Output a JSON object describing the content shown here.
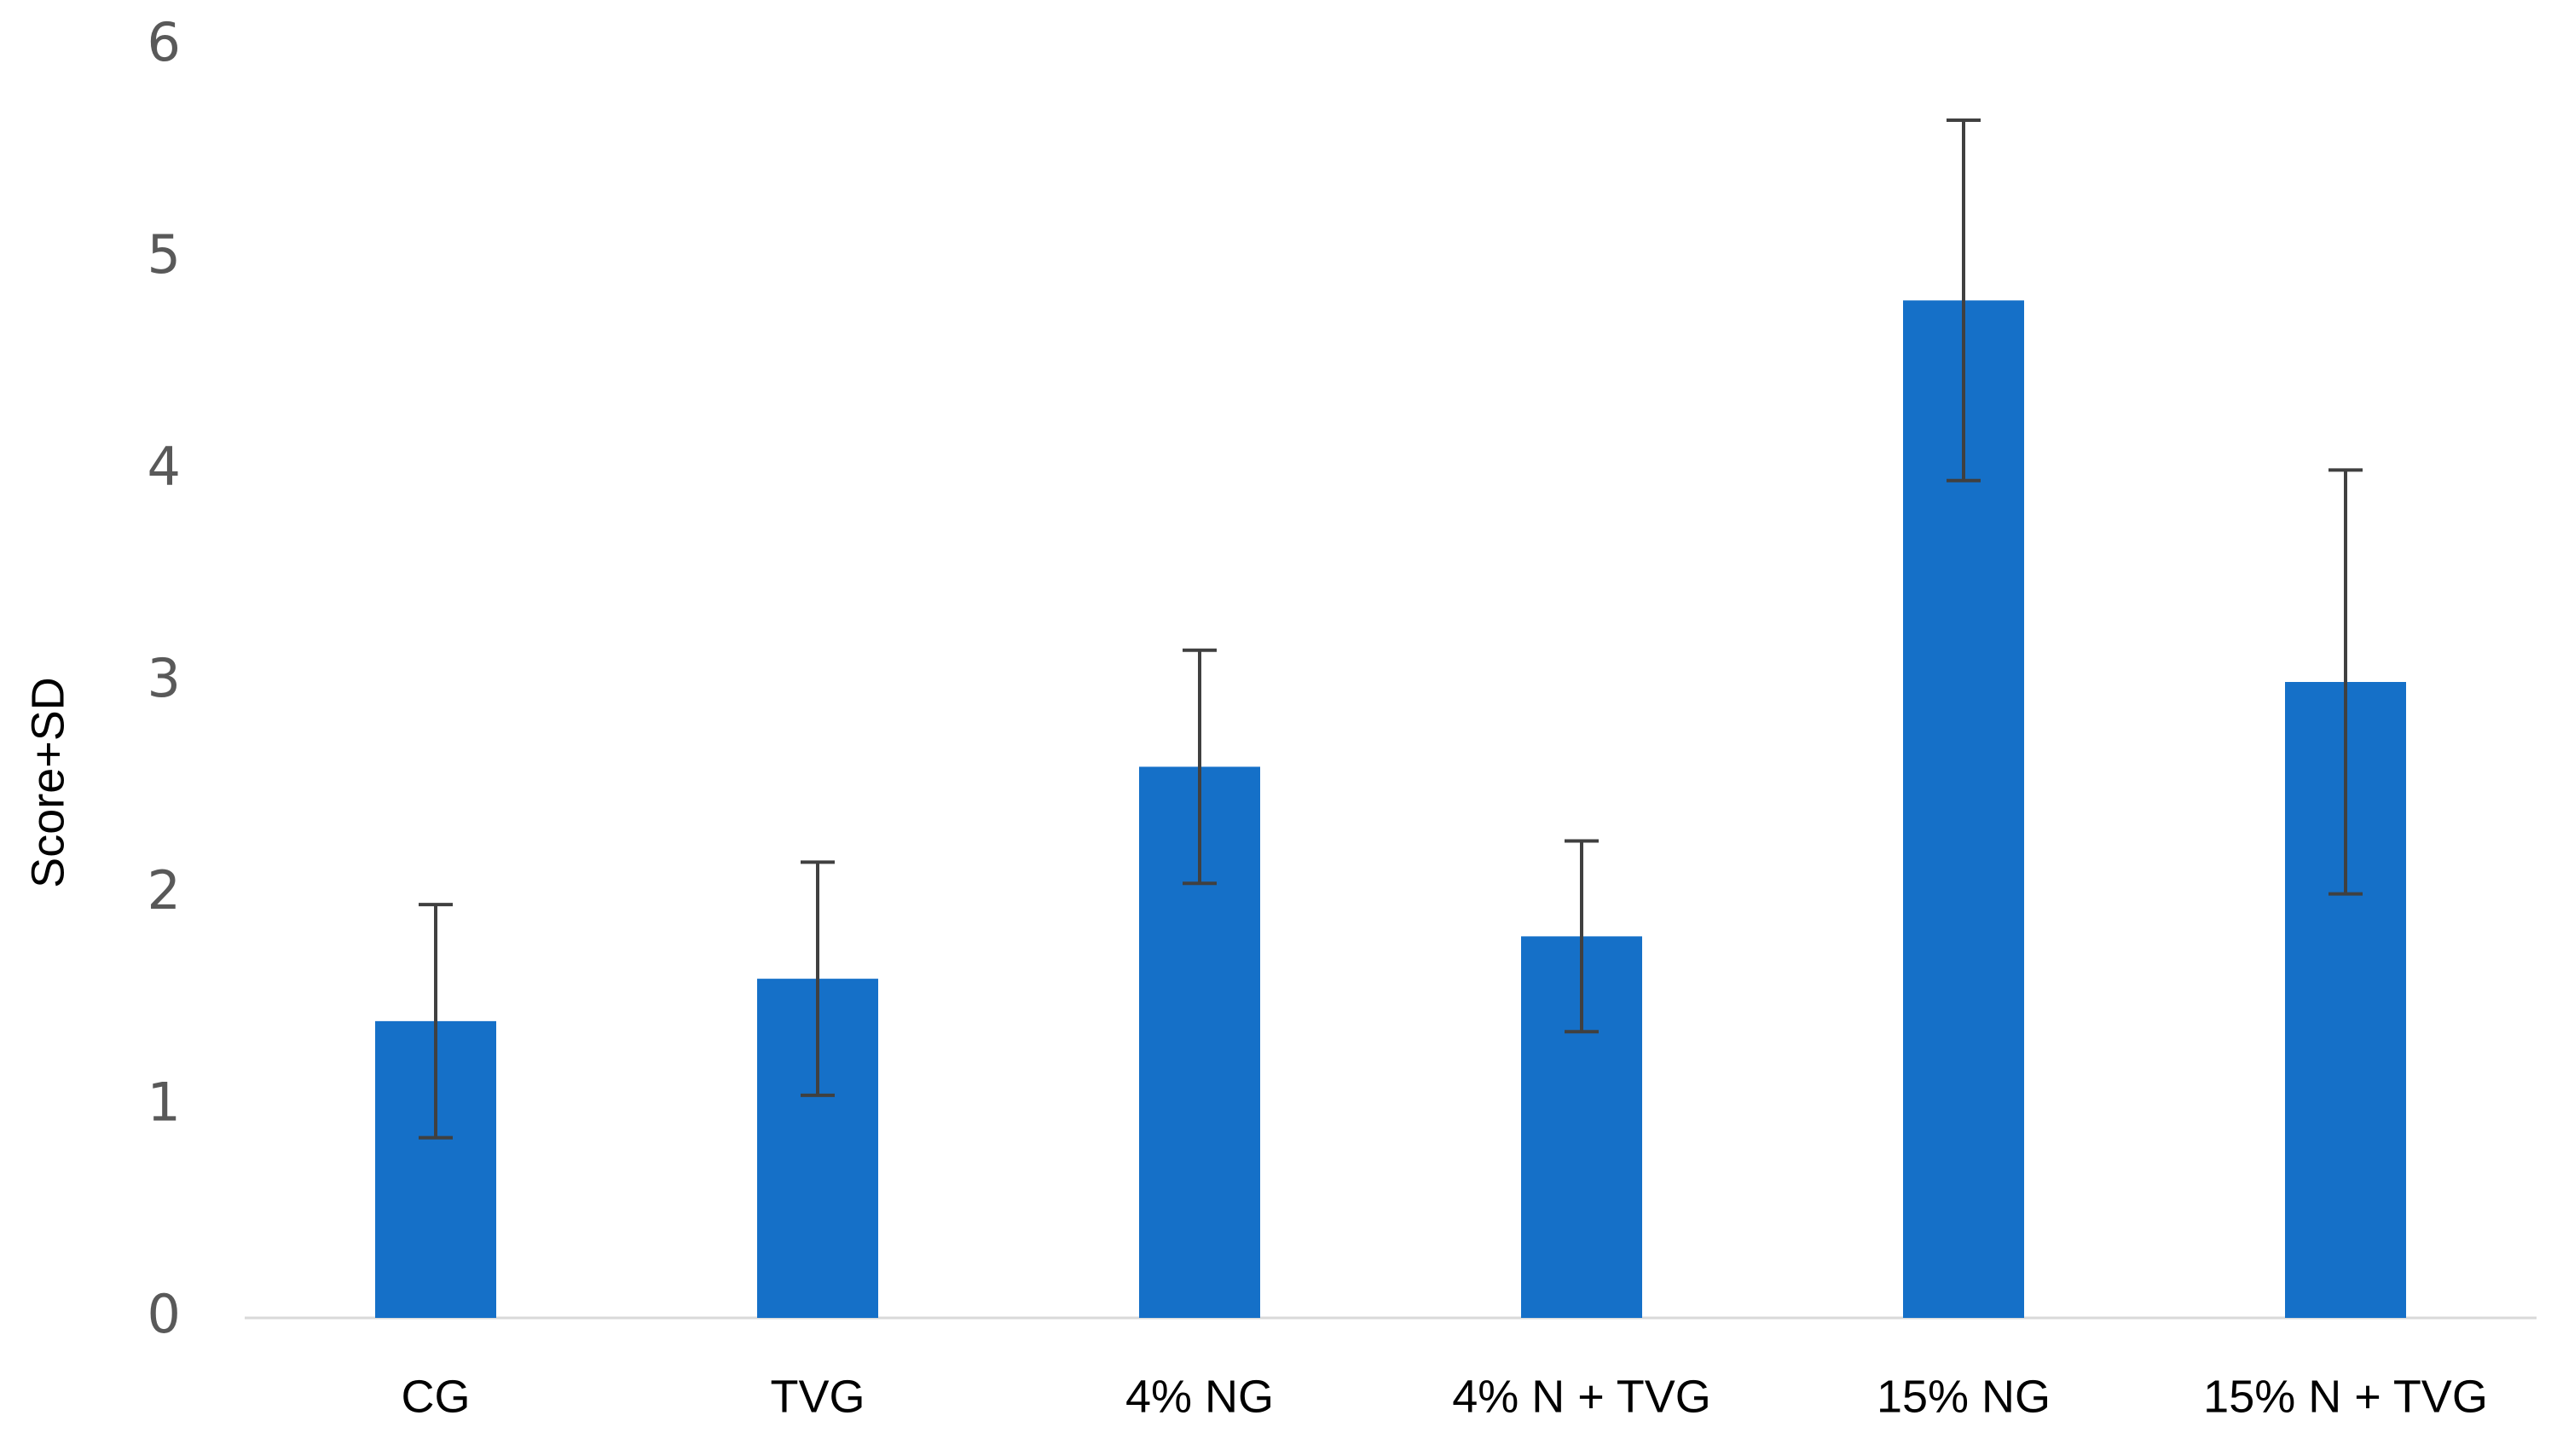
{
  "chart_data": {
    "type": "bar",
    "y_label": "Score+SD",
    "categories": [
      "CG",
      "TVG",
      "4% NG",
      "4% N + TVG",
      "15% NG",
      "15% N + TVG"
    ],
    "values": [
      1.4,
      1.6,
      2.6,
      1.8,
      4.8,
      3.0
    ],
    "errors": [
      0.55,
      0.55,
      0.55,
      0.45,
      0.85,
      1.0
    ],
    "color": "#1570c8",
    "ylim": [
      0,
      6
    ],
    "yticks": [
      0,
      1,
      2,
      3,
      4,
      5,
      6
    ],
    "grid": false
  }
}
